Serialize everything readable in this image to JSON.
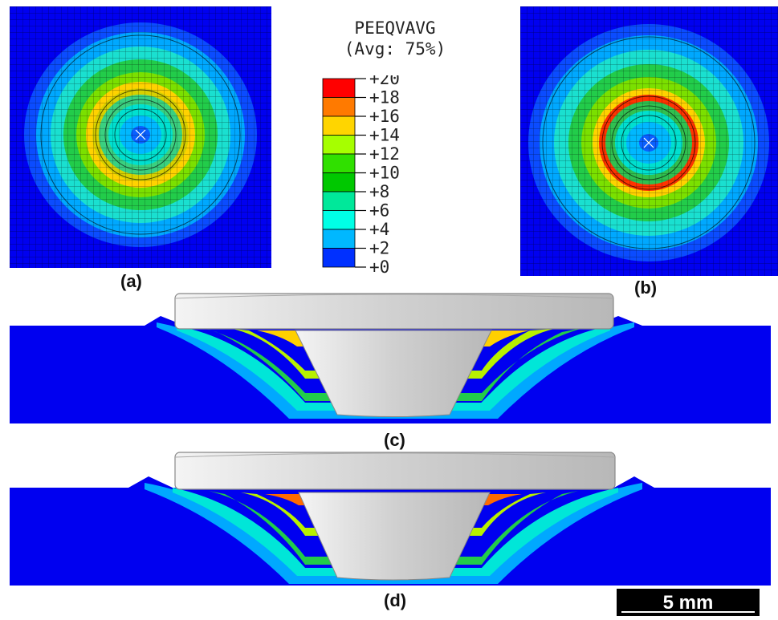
{
  "legend": {
    "title": "PEEQVAVG",
    "subtitle": "(Avg: 75%)",
    "ticks": [
      "+20",
      "+18",
      "+16",
      "+14",
      "+12",
      "+10",
      "+8",
      "+6",
      "+4",
      "+2",
      "+0"
    ],
    "colors": [
      "#ff0000",
      "#ff7a00",
      "#ffd500",
      "#a6ff00",
      "#30e000",
      "#00c800",
      "#00e89a",
      "#00ffe6",
      "#00b8ff",
      "#0030ff",
      "#0000ff"
    ]
  },
  "captions": {
    "a": "(a)",
    "b": "(b)",
    "c": "(c)",
    "d": "(d)"
  },
  "scale_bar": {
    "label": "5 mm"
  },
  "colors": {
    "background_mesh": "#0000f0",
    "mesh_line": "#000000",
    "tool": "#d6d6d6"
  }
}
